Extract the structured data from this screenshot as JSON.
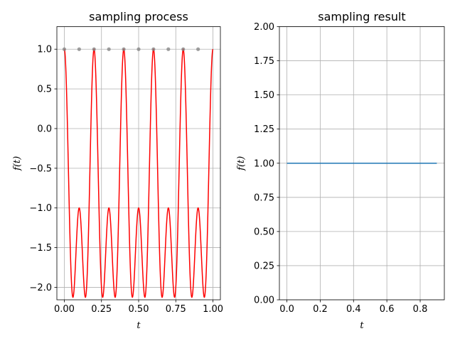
{
  "chart_data": [
    {
      "type": "line",
      "title": "sampling process",
      "xlabel": "t",
      "ylabel": "f(t)",
      "xlim": [
        -0.05,
        1.05
      ],
      "ylim": [
        -2.157,
        1.284
      ],
      "xticks": [
        0.0,
        0.25,
        0.5,
        0.75,
        1.0
      ],
      "xtick_labels": [
        "0.00",
        "0.25",
        "0.50",
        "0.75",
        "1.00"
      ],
      "yticks": [
        1.0,
        0.5,
        0.0,
        -0.5,
        -1.0,
        -1.5,
        -2.0
      ],
      "ytick_labels": [
        "1.0",
        "0.5",
        "0.0",
        "−0.5",
        "−1.0",
        "−1.5",
        "−2.0"
      ],
      "grid": true,
      "curve": {
        "formula": "f(t) = cos(2*pi*10*t) + cos(2*pi*5*t) - 1",
        "x_range": [
          0,
          1
        ],
        "color": "#ff0000",
        "y_extremes": {
          "max": 1.125,
          "min": -2.0
        }
      },
      "samples": {
        "x": [
          0.0,
          0.1,
          0.2,
          0.3,
          0.4,
          0.5,
          0.6,
          0.7,
          0.8,
          0.9
        ],
        "y": [
          1,
          1,
          1,
          1,
          1,
          1,
          1,
          1,
          1,
          1
        ],
        "color": "#808080"
      }
    },
    {
      "type": "line",
      "title": "sampling result",
      "xlabel": "t",
      "ylabel": "f(t)",
      "xlim": [
        -0.045,
        0.945
      ],
      "ylim": [
        0,
        2
      ],
      "xticks": [
        0.0,
        0.2,
        0.4,
        0.6,
        0.8
      ],
      "xtick_labels": [
        "0.0",
        "0.2",
        "0.4",
        "0.6",
        "0.8"
      ],
      "yticks": [
        2.0,
        1.75,
        1.5,
        1.25,
        1.0,
        0.75,
        0.5,
        0.25,
        0.0
      ],
      "ytick_labels": [
        "2.00",
        "1.75",
        "1.50",
        "1.25",
        "1.00",
        "0.75",
        "0.50",
        "0.25",
        "0.00"
      ],
      "grid": true,
      "series": [
        {
          "x": [
            0.0,
            0.1,
            0.2,
            0.3,
            0.4,
            0.5,
            0.6,
            0.7,
            0.8,
            0.9
          ],
          "values": [
            1,
            1,
            1,
            1,
            1,
            1,
            1,
            1,
            1,
            1
          ],
          "color": "#1f77b4"
        }
      ]
    }
  ]
}
